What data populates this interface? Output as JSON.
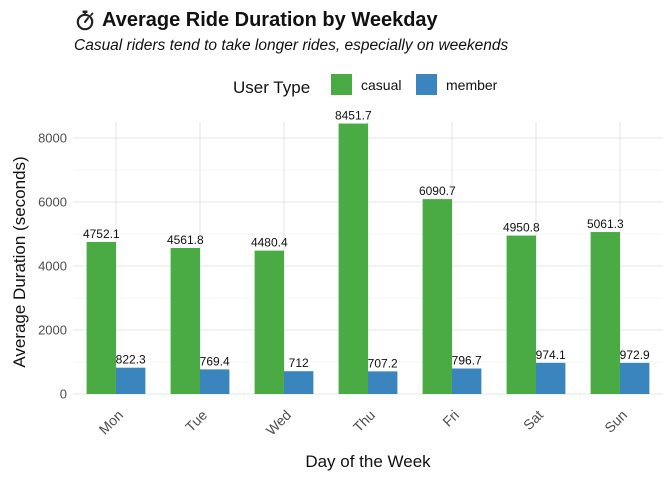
{
  "title": "Average Ride Duration by Weekday",
  "title_icon": "stopwatch-icon",
  "subtitle": "Casual riders tend to take longer rides, especially on weekends",
  "chart_data": {
    "type": "bar",
    "xlabel": "Day of the Week",
    "ylabel": "Average Duration (seconds)",
    "categories": [
      "Mon",
      "Tue",
      "Wed",
      "Thu",
      "Fri",
      "Sat",
      "Sun"
    ],
    "ylim": [
      0,
      8500
    ],
    "yticks": [
      0,
      2000,
      4000,
      6000,
      8000
    ],
    "grid": true,
    "legend": {
      "title": "User Type",
      "position": "top"
    },
    "series": [
      {
        "name": "casual",
        "color": "#4aab45",
        "values": [
          4752.1,
          4561.8,
          4480.4,
          8451.7,
          6090.7,
          4950.8,
          5061.3
        ],
        "labels": [
          "4752.1",
          "4561.8",
          "4480.4",
          "8451.7",
          "6090.7",
          "4950.8",
          "5061.3"
        ]
      },
      {
        "name": "member",
        "color": "#3a85be",
        "values": [
          822.3,
          769.4,
          712,
          707.2,
          796.7,
          974.1,
          972.9
        ],
        "labels": [
          "822.3",
          "769.4",
          "712",
          "707.2",
          "796.7",
          "974.1",
          "972.9"
        ]
      }
    ]
  }
}
